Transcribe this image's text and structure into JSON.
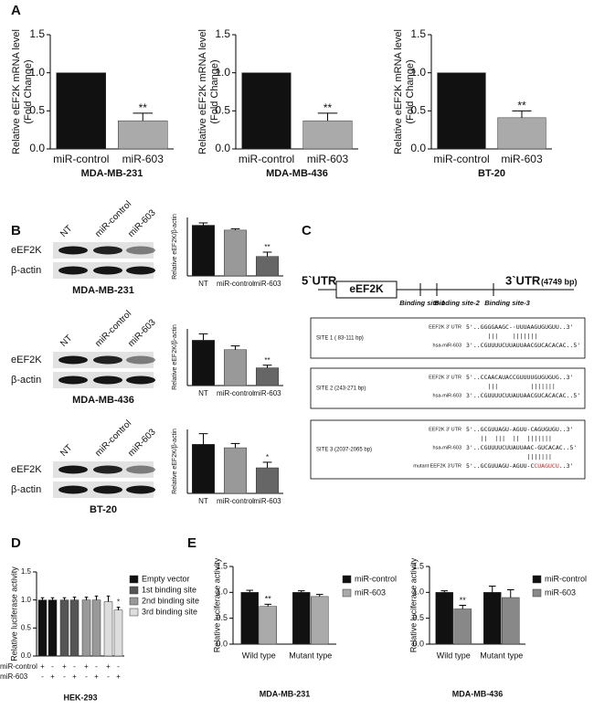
{
  "panel_labels": [
    "A",
    "B",
    "C",
    "D",
    "E"
  ],
  "chart_data": [
    {
      "type": "bar",
      "ylabel": [
        "Relative eEF2K mRNA level",
        "(Fold Change)"
      ],
      "categories": [
        "miR-control",
        "miR-603"
      ],
      "values": [
        1.0,
        0.37
      ],
      "errors": [
        null,
        0.1
      ],
      "notes": [
        null,
        "**"
      ],
      "colors": [
        "#111111",
        "#aaaaaa"
      ],
      "ylim": [
        0,
        1.5
      ],
      "yticks": [
        {
          "value": 0,
          "label": "0.0"
        },
        0.5,
        {
          "value": 1,
          "label": "1.0"
        },
        1.5
      ],
      "xlabel": "MDA-MB-231"
    },
    {
      "type": "bar",
      "ylabel": [
        "Relative eEF2K mRNA level",
        "(Fold Change)"
      ],
      "categories": [
        "miR-control",
        "miR-603"
      ],
      "values": [
        1.0,
        0.37
      ],
      "errors": [
        null,
        0.1
      ],
      "notes": [
        null,
        "**"
      ],
      "colors": [
        "#111111",
        "#aaaaaa"
      ],
      "ylim": [
        0,
        1.5
      ],
      "yticks": [
        {
          "value": 0,
          "label": "0.0"
        },
        0.5,
        {
          "value": 1,
          "label": "1.0"
        },
        1.5
      ],
      "xlabel": "MDA-MB-436"
    },
    {
      "type": "bar",
      "ylabel": [
        "Relative eEF2K mRNA level",
        "(Fold Change)"
      ],
      "categories": [
        "miR-control",
        "miR-603"
      ],
      "values": [
        1.0,
        0.41
      ],
      "errors": [
        null,
        0.09
      ],
      "notes": [
        null,
        "**"
      ],
      "colors": [
        "#111111",
        "#aaaaaa"
      ],
      "ylim": [
        0,
        1.5
      ],
      "yticks": [
        {
          "value": 0,
          "label": "0.0"
        },
        0.5,
        {
          "value": 1,
          "label": "1.0"
        },
        1.5
      ],
      "xlabel": "BT-20"
    },
    {
      "type": "bar",
      "ylabel": "Relative eEF2K/β-actin",
      "categories": [
        "NT",
        "miR-control",
        "miR-603"
      ],
      "values": [
        2.6,
        2.35,
        1.0
      ],
      "errors": [
        0.12,
        0.07,
        0.22
      ],
      "notes": [
        null,
        null,
        "**"
      ],
      "colors": [
        "#111111",
        "#999999",
        "#666666"
      ],
      "ylim": [
        0,
        3
      ]
    },
    {
      "type": "bar",
      "ylabel": "Relative eEF2K/β-actin",
      "categories": [
        "NT",
        "miR-control",
        "miR-603"
      ],
      "values": [
        1.2,
        0.95,
        0.47
      ],
      "errors": [
        0.17,
        0.1,
        0.07
      ],
      "notes": [
        null,
        null,
        "**"
      ],
      "colors": [
        "#111111",
        "#999999",
        "#666666"
      ],
      "ylim": [
        0,
        1.5
      ]
    },
    {
      "type": "bar",
      "ylabel": "Relative eEF2K/β-actin",
      "categories": [
        "NT",
        "miR-control",
        "miR-603"
      ],
      "values": [
        1.15,
        1.07,
        0.6
      ],
      "errors": [
        0.25,
        0.1,
        0.13
      ],
      "notes": [
        null,
        null,
        "*"
      ],
      "colors": [
        "#111111",
        "#999999",
        "#666666"
      ],
      "ylim": [
        0,
        1.5
      ]
    },
    {
      "type": "bar",
      "ylabel": "Relative luciferase activity",
      "ylim": [
        0,
        1.5
      ],
      "yticks": [
        {
          "value": 0,
          "label": "0.0"
        },
        0.5,
        {
          "value": 1,
          "label": "1.0"
        },
        1.5
      ],
      "series": [
        {
          "name": "Empty vector",
          "color": "#111111",
          "values": [
            1.0,
            1.0
          ],
          "errors": [
            0.04,
            0.04
          ]
        },
        {
          "name": "1st binding site",
          "color": "#555555",
          "values": [
            1.0,
            1.0
          ],
          "errors": [
            0.04,
            0.05
          ]
        },
        {
          "name": "2nd binding site",
          "color": "#999999",
          "values": [
            1.0,
            1.0
          ],
          "errors": [
            0.05,
            0.07
          ]
        },
        {
          "name": "3rd binding site",
          "color": "#dddddd",
          "values": [
            0.97,
            0.82
          ],
          "errors": [
            0.1,
            0.05
          ],
          "notes": [
            null,
            "*"
          ]
        }
      ],
      "conditions": [
        {
          "name": "miR-control",
          "marks": [
            "+",
            "-",
            "+",
            "-",
            "+",
            "-",
            "+",
            "-"
          ]
        },
        {
          "name": "miR-603",
          "marks": [
            "-",
            "+",
            "-",
            "+",
            "-",
            "+",
            "-",
            "+"
          ]
        }
      ],
      "legend": "right",
      "xlabel": "HEK-293"
    },
    {
      "type": "bar",
      "ylabel": "Relative luciferase activity",
      "categories": [
        "Wild type",
        "Mutant type"
      ],
      "ylim": [
        0,
        1.5
      ],
      "yticks": [
        {
          "value": 0,
          "label": "0.0"
        },
        0.5,
        {
          "value": 1,
          "label": "1.0"
        },
        1.5
      ],
      "series": [
        {
          "name": "miR-control",
          "color": "#111111",
          "values": [
            1.0,
            1.0
          ],
          "errors": [
            0.04,
            0.03
          ]
        },
        {
          "name": "miR-603",
          "color": "#aaaaaa",
          "values": [
            0.73,
            0.92
          ],
          "errors": [
            0.04,
            0.04
          ],
          "notes": [
            "**",
            null
          ]
        }
      ],
      "legend": "right",
      "xlabel": "MDA-MB-231"
    },
    {
      "type": "bar",
      "ylabel": "Relative luciferase activity",
      "categories": [
        "Wild type",
        "Mutant type"
      ],
      "ylim": [
        0,
        1.5
      ],
      "yticks": [
        {
          "value": 0,
          "label": "0.0"
        },
        0.5,
        {
          "value": 1,
          "label": "1.0"
        },
        1.5
      ],
      "series": [
        {
          "name": "miR-control",
          "color": "#111111",
          "values": [
            1.0,
            1.0
          ],
          "errors": [
            0.03,
            0.12
          ]
        },
        {
          "name": "miR-603",
          "color": "#888888",
          "values": [
            0.68,
            0.9
          ],
          "errors": [
            0.07,
            0.15
          ],
          "notes": [
            "**",
            null
          ]
        }
      ],
      "legend": "right",
      "xlabel": "MDA-MB-436"
    }
  ],
  "blots": [
    {
      "lanes": [
        "NT",
        "miR-control",
        "miR-603"
      ],
      "rows": [
        "eEF2K",
        "β-actin"
      ],
      "cell_line": "MDA-MB-231"
    },
    {
      "lanes": [
        "NT",
        "miR-control",
        "miR-603"
      ],
      "rows": [
        "eEF2K",
        "β-actin"
      ],
      "cell_line": "MDA-MB-436"
    },
    {
      "lanes": [
        "NT",
        "miR-control",
        "miR-603"
      ],
      "rows": [
        "eEF2K",
        "β-actin"
      ],
      "cell_line": "BT-20"
    }
  ],
  "diagram": {
    "utr5": "5`UTR",
    "gene": "eEF2K",
    "utr3": "3`UTR",
    "length": "(4749 bp)",
    "sites": [
      "Binding site-1",
      "Binding site-2",
      "Binding site-3"
    ],
    "boxes": [
      {
        "title": "SITE 1 ( 83-111 bp)",
        "lines": [
          {
            "name": "EEF2K 3' UTR",
            "seq": "5'..GGGGAAGC-·UUUAAGUGUGUU..3'"
          },
          {
            "pairs": "      |||    |||||||"
          },
          {
            "name": "hsa-miR-603",
            "seq": "3'..CGUUUUCUUAUUAACGUCACACAC..5'"
          }
        ]
      },
      {
        "title": "SITE 2 (243-271 bp)",
        "lines": [
          {
            "name": "EEF2K 3' UTR",
            "seq": "5'..CCAACAUACCGUUUUGUGUGUG..3'"
          },
          {
            "pairs": "      |||         |||||||"
          },
          {
            "name": "hsa-miR-603",
            "seq": "3'..CGUUUUCUUAUUAACGUCACACAC..5'"
          }
        ]
      },
      {
        "title": "SITE 3 (2037-2065 bp)",
        "lines": [
          {
            "name": "EEF2K 3' UTR",
            "seq": "5'..GCGUUAGU-AGUU-CAGUGUGU..3'"
          },
          {
            "pairs": "    ||  |||  ||  |||||||"
          },
          {
            "name": "hsa-miR-603",
            "seq": "3'..CGUUUUCUUAUUAAC-GUCACAC..5'"
          },
          {
            "pairs": "                 |||||||"
          },
          {
            "name": "mutant EEF2K 3'UTR",
            "seq": [
              "5'..GCGUUAGU-AGUU-C",
              "CUAGUCU",
              "..3'"
            ],
            "highlight": "#d62728"
          }
        ]
      }
    ]
  }
}
